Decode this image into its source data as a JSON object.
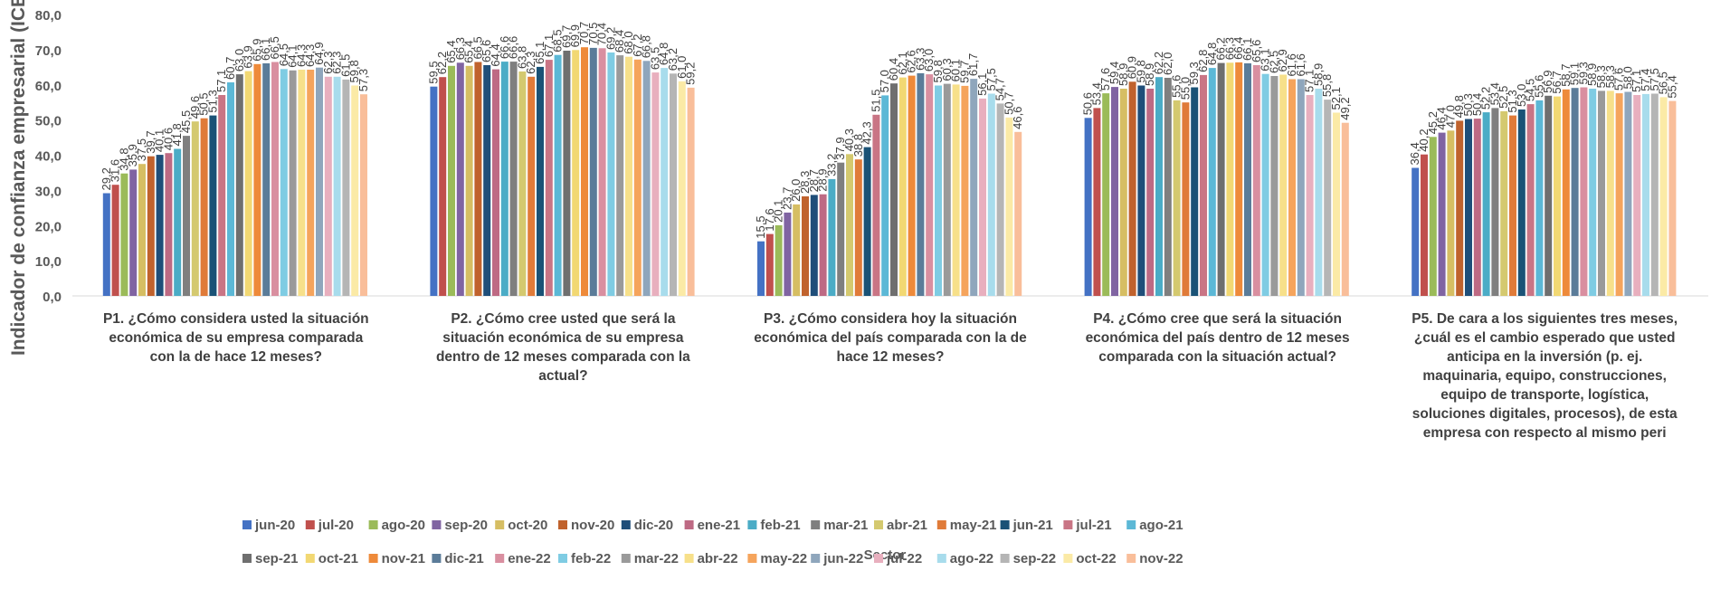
{
  "chart_data": {
    "type": "bar",
    "ylabel": "Indicador de confianza empresarial (ICE)",
    "xlabel": "Sector",
    "ylim": [
      0,
      80
    ],
    "ytick_step": 10,
    "yticks": [
      "0,0",
      "10,0",
      "20,0",
      "30,0",
      "40,0",
      "50,0",
      "60,0",
      "70,0",
      "80,0"
    ],
    "grid": false,
    "legend_position": "bottom",
    "categories": [
      "P1. ¿Cómo considera usted la situación económica de su empresa comparada con la de hace 12 meses?",
      "P2. ¿Cómo cree usted que será la situación económica de su empresa dentro de 12 meses comparada con la actual?",
      "P3. ¿Cómo considera hoy la situación económica del país comparada con la de hace 12 meses?",
      "P4. ¿Cómo cree que será la situación económica del país dentro de 12 meses comparada con la situación actual?",
      "P5. De cara a los siguientes tres meses, ¿cuál es el cambio esperado que usted anticipa en la inversión (p. ej. maquinaria, equipo, construcciones, equipo de transporte, logística, soluciones digitales, procesos), de esta empresa con respecto al mismo peri"
    ],
    "category_lines": [
      [
        "P1. ¿Cómo considera usted la situación",
        "económica de su empresa comparada",
        "con la de hace 12 meses?"
      ],
      [
        "P2. ¿Cómo cree usted que será la",
        "situación económica de su empresa",
        "dentro de 12 meses comparada con la",
        "actual?"
      ],
      [
        "P3. ¿Cómo considera hoy la situación",
        "económica del país comparada con la de",
        "hace 12 meses?"
      ],
      [
        "P4. ¿Cómo cree que será la situación",
        "económica del país dentro de 12 meses",
        "comparada con la situación actual?"
      ],
      [
        "P5. De cara a los siguientes tres meses,",
        "¿cuál es el cambio esperado que usted",
        "anticipa en la inversión (p. ej.",
        "maquinaria, equipo, construcciones,",
        "equipo de transporte, logística,",
        "soluciones digitales, procesos), de esta",
        "empresa con respecto al mismo peri"
      ]
    ],
    "series": [
      {
        "name": "jun-20",
        "color": "#4472C4",
        "values": [
          29.2,
          59.5,
          15.5,
          50.6,
          36.4
        ],
        "labels": [
          "29,2",
          "59,5",
          "15,5",
          "50,6",
          "36,4"
        ]
      },
      {
        "name": "jul-20",
        "color": "#C0504D",
        "values": [
          31.6,
          62.2,
          17.6,
          53.4,
          40.2
        ],
        "labels": [
          "31,6",
          "62,2",
          "17,6",
          "53,4",
          "40,2"
        ]
      },
      {
        "name": "ago-20",
        "color": "#9BBB59",
        "values": [
          34.8,
          65.4,
          20.1,
          57.6,
          45.2
        ],
        "labels": [
          "34,8",
          "65,4",
          "20,1",
          "57,6",
          "45,2"
        ]
      },
      {
        "name": "sep-20",
        "color": "#8064A2",
        "values": [
          35.9,
          66.3,
          23.7,
          59.4,
          46.4
        ],
        "labels": [
          "35,9",
          "66,3",
          "23,7",
          "59,4",
          "46,4"
        ]
      },
      {
        "name": "oct-20",
        "color": "#D6BE63",
        "values": [
          37.5,
          65.4,
          26.0,
          58.9,
          47.0
        ],
        "labels": [
          "37,5",
          "65,4",
          "26,0",
          "58,9",
          "47,0"
        ]
      },
      {
        "name": "nov-20",
        "color": "#C0622D",
        "values": [
          39.7,
          66.5,
          28.3,
          60.9,
          49.8
        ],
        "labels": [
          "39,7",
          "66,5",
          "28,3",
          "60,9",
          "49,8"
        ]
      },
      {
        "name": "dic-20",
        "color": "#1F4E79",
        "values": [
          40.1,
          65.6,
          28.7,
          59.8,
          50.3
        ],
        "labels": [
          "40,1",
          "65,6",
          "28,7",
          "59,8",
          "50,3"
        ]
      },
      {
        "name": "ene-21",
        "color": "#BE6A84",
        "values": [
          40.6,
          64.4,
          28.9,
          58.9,
          50.4
        ],
        "labels": [
          "40,6",
          "64,4",
          "28,9",
          "58,9",
          "50,4"
        ]
      },
      {
        "name": "feb-21",
        "color": "#4BACC6",
        "values": [
          41.8,
          66.6,
          33.2,
          62.2,
          52.2
        ],
        "labels": [
          "41,8",
          "66,6",
          "33,2",
          "62,2",
          "52,2"
        ]
      },
      {
        "name": "mar-21",
        "color": "#7F7F7F",
        "values": [
          45.5,
          66.6,
          37.9,
          62.0,
          53.4
        ],
        "labels": [
          "45,5",
          "66,6",
          "37,9",
          "62,0",
          "53,4"
        ]
      },
      {
        "name": "abr-21",
        "color": "#D4C96F",
        "values": [
          49.6,
          63.8,
          40.3,
          55.6,
          52.5
        ],
        "labels": [
          "49,6",
          "63,8",
          "40,3",
          "55,6",
          "52,5"
        ]
      },
      {
        "name": "may-21",
        "color": "#E07B39",
        "values": [
          50.5,
          62.3,
          38.8,
          55.0,
          51.3
        ],
        "labels": [
          "50,5",
          "62,3",
          "38,8",
          "55,0",
          "51,3"
        ]
      },
      {
        "name": "jun-21",
        "color": "#1A5276",
        "values": [
          51.3,
          65.1,
          42.3,
          59.3,
          53.0
        ],
        "labels": [
          "51,3",
          "65,1",
          "42,3",
          "59,3",
          "53,0"
        ]
      },
      {
        "name": "jul-21",
        "color": "#C97585",
        "values": [
          57.1,
          67.1,
          51.5,
          62.8,
          54.5
        ],
        "labels": [
          "57,1",
          "67,1",
          "51,5",
          "62,8",
          "54,5"
        ]
      },
      {
        "name": "ago-21",
        "color": "#5CB8D6",
        "values": [
          60.7,
          68.5,
          57.0,
          64.8,
          55.6
        ],
        "labels": [
          "60,7",
          "68,5",
          "57,0",
          "64,8",
          "55,6"
        ]
      },
      {
        "name": "sep-21",
        "color": "#6F6F6F",
        "values": [
          63.0,
          69.7,
          60.4,
          66.2,
          56.9
        ],
        "labels": [
          "63,0",
          "69,7",
          "60,4",
          "66,2",
          "56,9"
        ]
      },
      {
        "name": "oct-21",
        "color": "#F2D873",
        "values": [
          63.9,
          69.9,
          62.1,
          66.3,
          56.7
        ],
        "labels": [
          "63,9",
          "69,9",
          "62,1",
          "66,3",
          "56,7"
        ]
      },
      {
        "name": "nov-21",
        "color": "#EE8A3A",
        "values": [
          65.9,
          70.7,
          62.6,
          66.4,
          58.7
        ],
        "labels": [
          "65,9",
          "70,7",
          "62,6",
          "66,4",
          "58,7"
        ]
      },
      {
        "name": "dic-21",
        "color": "#5B7C99",
        "values": [
          66.1,
          70.5,
          63.3,
          66.1,
          59.1
        ],
        "labels": [
          "66,1",
          "70,5",
          "63,3",
          "66,1",
          "59,1"
        ]
      },
      {
        "name": "ene-22",
        "color": "#D98FA0",
        "values": [
          66.5,
          70.4,
          63.0,
          65.6,
          59.3
        ],
        "labels": [
          "66,5",
          "70,4",
          "63,0",
          "65,6",
          "59,3"
        ]
      },
      {
        "name": "feb-22",
        "color": "#7FCCE3",
        "values": [
          64.5,
          69.2,
          59.8,
          63.1,
          58.9
        ],
        "labels": [
          "64,5",
          "69,2",
          "59,8",
          "63,1",
          "58,9"
        ]
      },
      {
        "name": "mar-22",
        "color": "#9A9A9A",
        "values": [
          64.1,
          68.4,
          60.3,
          62.5,
          58.3
        ],
        "labels": [
          "64,1",
          "68,4",
          "60,3",
          "62,5",
          "58,3"
        ]
      },
      {
        "name": "abr-22",
        "color": "#F7E08A",
        "values": [
          64.3,
          68.0,
          60.1,
          62.9,
          58.3
        ],
        "labels": [
          "64,3",
          "68,0",
          "60,1",
          "62,9",
          "58,3"
        ]
      },
      {
        "name": "may-22",
        "color": "#F5A45C",
        "values": [
          64.3,
          67.2,
          59.7,
          61.6,
          57.6
        ],
        "labels": [
          "64,3",
          "67,2",
          "59,7",
          "61,6",
          "57,6"
        ]
      },
      {
        "name": "jun-22",
        "color": "#8FA6BC",
        "values": [
          64.9,
          66.8,
          61.7,
          61.6,
          58.0
        ],
        "labels": [
          "64,9",
          "66,8",
          "61,7",
          "61,6",
          "58,0"
        ]
      },
      {
        "name": "jul-22",
        "color": "#E8AFBE",
        "values": [
          62.3,
          63.5,
          56.1,
          57.1,
          57.1
        ],
        "labels": [
          "62,3",
          "63,5",
          "56,1",
          "57,1",
          "57,1"
        ]
      },
      {
        "name": "ago-22",
        "color": "#A8DCEC",
        "values": [
          62.3,
          64.8,
          57.5,
          58.9,
          57.4
        ],
        "labels": [
          "62,3",
          "64,8",
          "57,5",
          "58,9",
          "57,4"
        ]
      },
      {
        "name": "sep-22",
        "color": "#B5B5B5",
        "values": [
          61.5,
          63.2,
          54.7,
          55.8,
          57.5
        ],
        "labels": [
          "61,5",
          "63,2",
          "54,7",
          "55,8",
          "57,5"
        ]
      },
      {
        "name": "oct-22",
        "color": "#FBEAA6",
        "values": [
          59.8,
          61.0,
          50.7,
          52.1,
          56.5
        ],
        "labels": [
          "59,8",
          "61,0",
          "50,7",
          "52,1",
          "56,5"
        ]
      },
      {
        "name": "nov-22",
        "color": "#F9BE9A",
        "values": [
          57.3,
          59.2,
          46.6,
          49.2,
          55.4
        ],
        "labels": [
          "57,3",
          "59,2",
          "46,6",
          "49,2",
          "55,4"
        ]
      }
    ]
  }
}
